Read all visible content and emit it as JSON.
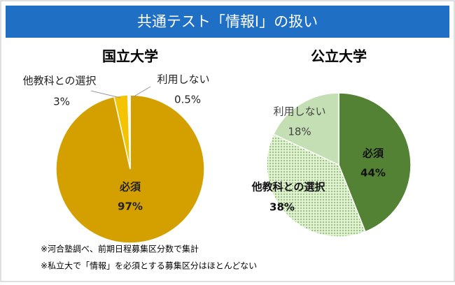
{
  "header": {
    "title": "共通テスト「情報Ⅰ」の扱い"
  },
  "notes": [
    "※河合塾調べ、前期日程募集区分数で集計",
    "※私立大で「情報」を必須とする募集区分はほとんどない"
  ],
  "chart_data": [
    {
      "type": "pie",
      "title": "国立大学",
      "categories": [
        "必須",
        "他教科との選択",
        "利用しない"
      ],
      "values": [
        97,
        3,
        0.5
      ],
      "value_labels": [
        "97%",
        "3%",
        "0.5%"
      ],
      "colors": [
        "#d4a000",
        "#f5c400",
        "#ffffff"
      ],
      "patterns": [
        null,
        null,
        null
      ]
    },
    {
      "type": "pie",
      "title": "公立大学",
      "categories": [
        "必須",
        "他教科との選択",
        "利用しない"
      ],
      "values": [
        44,
        38,
        18
      ],
      "value_labels": [
        "44%",
        "38%",
        "18%"
      ],
      "colors": [
        "#548235",
        "#8cc063",
        "#c5dfb4"
      ],
      "patterns": [
        null,
        "dots",
        null
      ]
    }
  ]
}
